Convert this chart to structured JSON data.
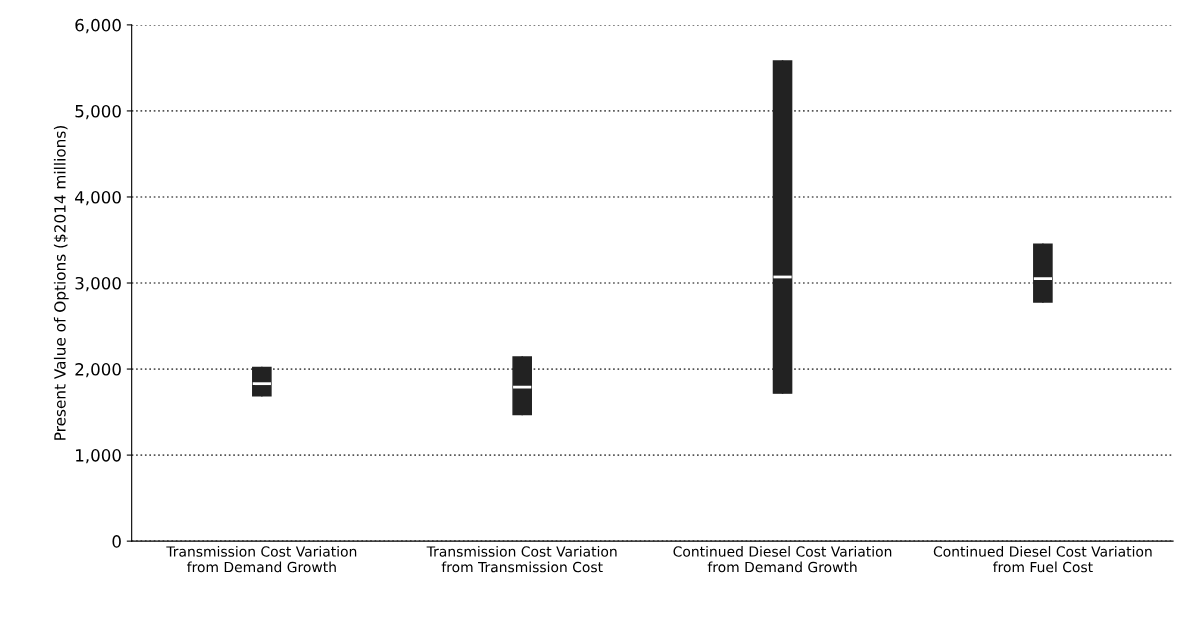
{
  "chart_data": {
    "type": "box",
    "ylabel": "Present Value of Options ($2014 millions)",
    "categories": [
      "Transmission Cost Variation\nfrom Demand Growth",
      "Transmission Cost Variation\nfrom Transmission Cost",
      "Continued Diesel Cost Variation\nfrom Demand Growth",
      "Continued Diesel Cost Variation\nfrom Fuel Cost"
    ],
    "color": "#222222",
    "boxes": [
      {
        "low": 1690,
        "q1": 1690,
        "median": 1830,
        "q3": 2020,
        "high": 2020
      },
      {
        "low": 1470,
        "q1": 1470,
        "median": 1790,
        "q3": 2140,
        "high": 2140
      },
      {
        "low": 1720,
        "q1": 1720,
        "median": 3070,
        "q3": 5580,
        "high": 5580
      },
      {
        "low": 2780,
        "q1": 2780,
        "median": 3050,
        "q3": 3450,
        "high": 3450
      }
    ],
    "ylim": [
      0,
      6000
    ],
    "yticks": [
      {
        "value": 0,
        "label": "0"
      },
      {
        "value": 1000,
        "label": "1,000"
      },
      {
        "value": 2000,
        "label": "2,000"
      },
      {
        "value": 3000,
        "label": "3,000"
      },
      {
        "value": 4000,
        "label": "4,000"
      },
      {
        "value": 5000,
        "label": "5,000"
      },
      {
        "value": 6000,
        "label": "6,000"
      }
    ],
    "grid": "y"
  }
}
